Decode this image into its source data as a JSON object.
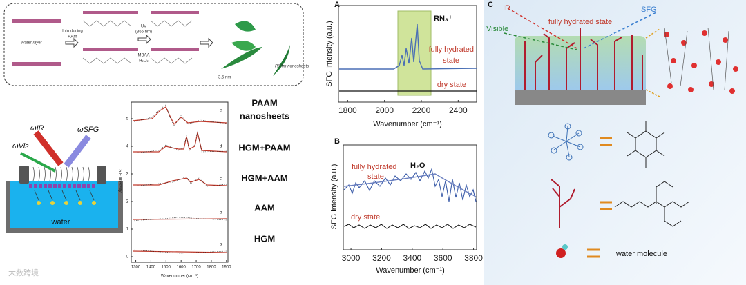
{
  "schematic": {
    "water_layer": "Water layer",
    "step1": [
      "Introducing",
      "AAm"
    ],
    "step2": [
      "UV",
      "(365 nm)",
      "MBAA",
      "H₂O₂"
    ],
    "thickness": "3.5 nm",
    "product": "PAAm nanosheets"
  },
  "setup": {
    "ir": "ωIR",
    "vis": "ωVis",
    "sfg": "ωSFG",
    "water": "water"
  },
  "stack": {
    "x_label": "Wavenumber (cm⁻¹)",
    "y_label": "S F Intensity",
    "xlim": [
      1270,
      1910
    ],
    "xticks": [
      1300,
      1400,
      1500,
      1600,
      1700,
      1800,
      1900
    ],
    "ylim": [
      -0.2,
      5.6
    ],
    "yticks": [
      0,
      1,
      2,
      3,
      4,
      5
    ],
    "traces": [
      {
        "letter": "e",
        "name": [
          "PAAM",
          "nanosheets"
        ]
      },
      {
        "letter": "d",
        "name": [
          "HGM+PAAM"
        ]
      },
      {
        "letter": "c",
        "name": [
          "HGM+AAM"
        ]
      },
      {
        "letter": "b",
        "name": [
          "AAM"
        ]
      },
      {
        "letter": "a",
        "name": [
          "HGM"
        ]
      }
    ]
  },
  "panel_a": {
    "letter": "A",
    "peak": "RN₃⁺",
    "hydrated": [
      "fully hydrated",
      "state"
    ],
    "dry": "dry state",
    "x_label": "Wavenumber (cm⁻¹)",
    "y_label": "SFG Intensity (a.u.)",
    "xlim": [
      1750,
      2500
    ],
    "xticks": [
      1800,
      2000,
      2200,
      2400
    ]
  },
  "panel_b": {
    "letter": "B",
    "peak": "H₂O",
    "hydrated": [
      "fully hydrated",
      "state"
    ],
    "dry": "dry state",
    "x_label": "Wavenumber (cm⁻¹)",
    "y_label": "SFG intensity (a.u.)",
    "xlim": [
      2950,
      3820
    ],
    "xticks": [
      3000,
      3200,
      3400,
      3600,
      3800
    ]
  },
  "panel_c": {
    "letter": "C",
    "ir": "IR",
    "sfg": "SFG",
    "visible": "Visible",
    "state": "fully hydrated state",
    "water_molecule": "water molecule"
  },
  "watermark": "大数跨境"
}
